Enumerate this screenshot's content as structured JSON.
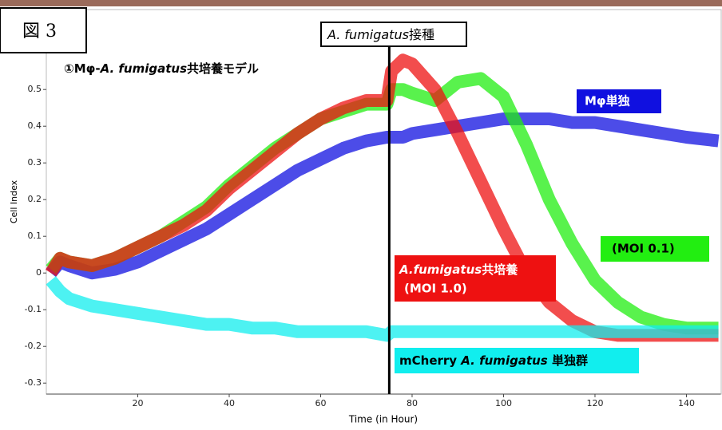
{
  "chart_data": {
    "type": "line",
    "figure_label": "図 3",
    "subtitle": [
      "①Mφ-",
      "A. fumigatus",
      "共培養モデル"
    ],
    "inoculation_label": [
      "A. fumigatus",
      "接種"
    ],
    "inoculation_time": 75,
    "x_label": "Time (in Hour)",
    "y_label": "Cell Index",
    "x": [
      1,
      3,
      5,
      10,
      15,
      20,
      25,
      30,
      35,
      40,
      45,
      50,
      55,
      60,
      65,
      70,
      74.5,
      75.5,
      78,
      80,
      85,
      90,
      95,
      100,
      105,
      110,
      115,
      120,
      125,
      130,
      135,
      140,
      147
    ],
    "series": [
      {
        "name": "Mφ単独",
        "color": "#1010e0",
        "values": [
          0.0,
          0.03,
          0.02,
          0.0,
          0.01,
          0.03,
          0.06,
          0.09,
          0.12,
          0.16,
          0.2,
          0.24,
          0.28,
          0.31,
          0.34,
          0.36,
          0.37,
          0.37,
          0.37,
          0.38,
          0.39,
          0.4,
          0.41,
          0.42,
          0.42,
          0.42,
          0.41,
          0.41,
          0.4,
          0.39,
          0.38,
          0.37,
          0.36
        ]
      },
      {
        "name": "(MOI 0.1)",
        "color": "#22ee11",
        "values": [
          0.01,
          0.04,
          0.03,
          0.02,
          0.04,
          0.07,
          0.1,
          0.14,
          0.18,
          0.24,
          0.29,
          0.34,
          0.38,
          0.42,
          0.44,
          0.46,
          0.46,
          0.5,
          0.5,
          0.49,
          0.47,
          0.52,
          0.53,
          0.48,
          0.35,
          0.2,
          0.08,
          -0.02,
          -0.08,
          -0.12,
          -0.14,
          -0.15,
          -0.15
        ]
      },
      {
        "name": [
          "A.fumigatus",
          "共培養",
          "(MOI 1.0)"
        ],
        "color": "#ee1111",
        "values": [
          0.0,
          0.04,
          0.03,
          0.02,
          0.04,
          0.07,
          0.1,
          0.13,
          0.17,
          0.23,
          0.28,
          0.33,
          0.38,
          0.42,
          0.45,
          0.47,
          0.47,
          0.55,
          0.58,
          0.57,
          0.5,
          0.38,
          0.25,
          0.12,
          0.0,
          -0.08,
          -0.13,
          -0.16,
          -0.17,
          -0.17,
          -0.17,
          -0.17,
          -0.17
        ]
      },
      {
        "name": [
          "mCherry ",
          "A. fumigatus",
          " 単独群"
        ],
        "color": "#11eeee",
        "values": [
          -0.02,
          -0.05,
          -0.07,
          -0.09,
          -0.1,
          -0.11,
          -0.12,
          -0.13,
          -0.14,
          -0.14,
          -0.15,
          -0.15,
          -0.16,
          -0.16,
          -0.16,
          -0.16,
          -0.17,
          -0.16,
          -0.16,
          -0.16,
          -0.16,
          -0.16,
          -0.16,
          -0.16,
          -0.16,
          -0.16,
          -0.16,
          -0.16,
          -0.16,
          -0.16,
          -0.16,
          -0.16,
          -0.16
        ]
      }
    ],
    "xlim": [
      0,
      147.5
    ],
    "ylim": [
      -0.33,
      0.68
    ],
    "xticks": [
      20,
      40,
      60,
      80,
      100,
      120,
      140
    ],
    "yticks": [
      -0.3,
      -0.2,
      -0.1,
      0,
      0.1,
      0.2,
      0.3,
      0.4,
      0.5
    ]
  }
}
